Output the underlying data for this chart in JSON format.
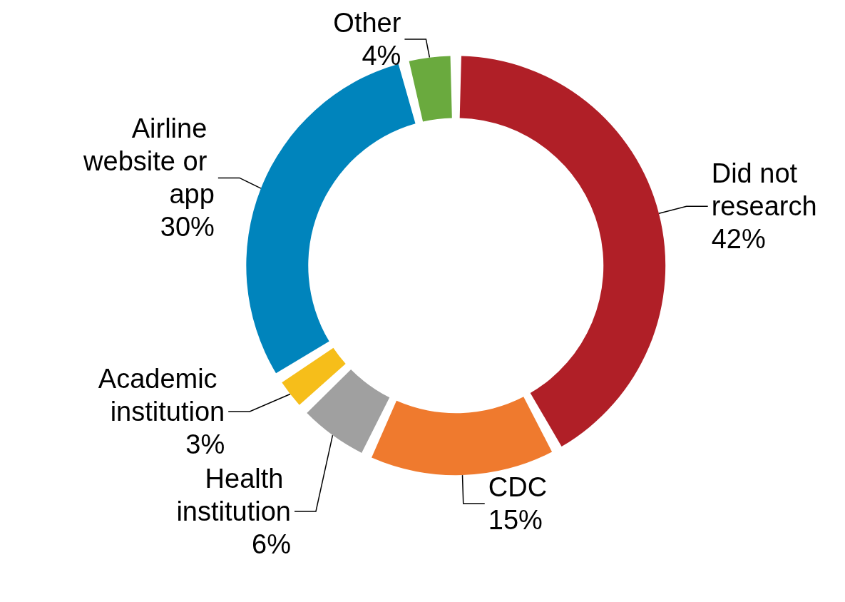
{
  "chart_data": {
    "type": "donut",
    "categories": [
      "Did not research",
      "CDC",
      "Health institution",
      "Academic institution",
      "Airline website or app",
      "Other"
    ],
    "values": [
      42,
      15,
      6,
      3,
      30,
      4
    ],
    "colors": [
      "#b01f27",
      "#ef7a2e",
      "#a0a0a0",
      "#f6be1a",
      "#0084bc",
      "#6aaa3e"
    ],
    "value_labels": [
      "42%",
      "15%",
      "6%",
      "3%",
      "30%",
      "4%"
    ],
    "legend": false
  }
}
